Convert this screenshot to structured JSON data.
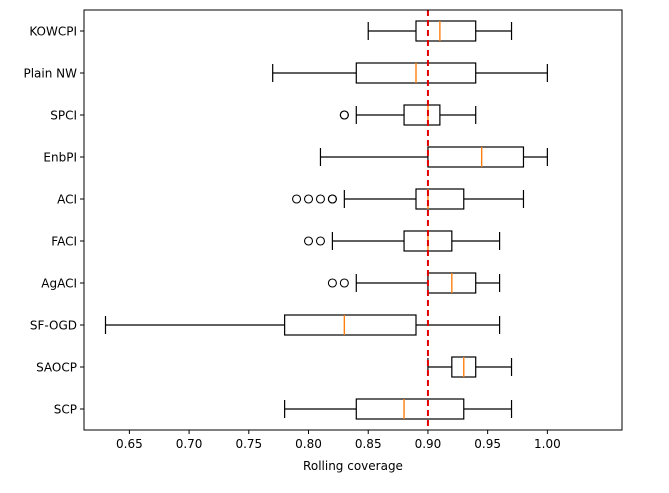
{
  "chart_data": {
    "type": "boxplot",
    "orientation": "horizontal",
    "title": "",
    "xlabel": "Rolling coverage",
    "ylabel": "",
    "xlim": [
      0.612,
      1.0625
    ],
    "xticks": [
      0.65,
      0.7,
      0.75,
      0.8,
      0.85,
      0.9,
      0.95,
      1.0
    ],
    "xtick_labels": [
      "0.65",
      "0.70",
      "0.75",
      "0.80",
      "0.85",
      "0.90",
      "0.95",
      "1.00"
    ],
    "reference_line": {
      "value": 0.9,
      "style": "dashed",
      "color": "#e00000"
    },
    "colors": {
      "box": "#000000",
      "median": "#ff7f0e",
      "reference": "#e00000"
    },
    "series": [
      {
        "name": "KOWCPI",
        "whisker_low": 0.85,
        "q1": 0.89,
        "median": 0.91,
        "q3": 0.94,
        "whisker_high": 0.97,
        "fliers": []
      },
      {
        "name": "Plain NW",
        "whisker_low": 0.77,
        "q1": 0.84,
        "median": 0.89,
        "q3": 0.94,
        "whisker_high": 1.0,
        "fliers": []
      },
      {
        "name": "SPCI",
        "whisker_low": 0.84,
        "q1": 0.88,
        "median": 0.9,
        "q3": 0.91,
        "whisker_high": 0.94,
        "fliers": [
          0.83,
          0.83
        ]
      },
      {
        "name": "EnbPI",
        "whisker_low": 0.81,
        "q1": 0.9,
        "median": 0.945,
        "q3": 0.98,
        "whisker_high": 1.0,
        "fliers": []
      },
      {
        "name": "ACI",
        "whisker_low": 0.83,
        "q1": 0.89,
        "median": 0.9,
        "q3": 0.93,
        "whisker_high": 0.98,
        "fliers": [
          0.79,
          0.8,
          0.81,
          0.82,
          0.82
        ]
      },
      {
        "name": "FACI",
        "whisker_low": 0.82,
        "q1": 0.88,
        "median": 0.9,
        "q3": 0.92,
        "whisker_high": 0.96,
        "fliers": [
          0.8,
          0.81
        ]
      },
      {
        "name": "AgACI",
        "whisker_low": 0.84,
        "q1": 0.9,
        "median": 0.92,
        "q3": 0.94,
        "whisker_high": 0.96,
        "fliers": [
          0.82,
          0.83
        ]
      },
      {
        "name": "SF-OGD",
        "whisker_low": 0.63,
        "q1": 0.78,
        "median": 0.83,
        "q3": 0.89,
        "whisker_high": 0.96,
        "fliers": []
      },
      {
        "name": "SAOCP",
        "whisker_low": 0.9,
        "q1": 0.92,
        "median": 0.93,
        "q3": 0.94,
        "whisker_high": 0.97,
        "fliers": []
      },
      {
        "name": "SCP",
        "whisker_low": 0.78,
        "q1": 0.84,
        "median": 0.88,
        "q3": 0.93,
        "whisker_high": 0.97,
        "fliers": []
      }
    ]
  }
}
